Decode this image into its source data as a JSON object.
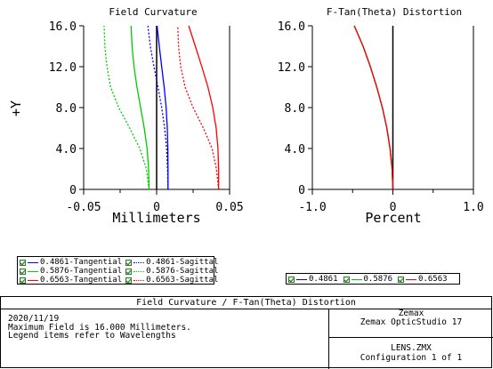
{
  "chart_data": [
    {
      "type": "line",
      "title": "Field Curvature",
      "xlabel": "Millimeters",
      "ylabel": "+Y",
      "xlim": [
        -0.05,
        0.05
      ],
      "ylim": [
        0,
        16
      ],
      "x_ticks": [
        "-0.05",
        "0",
        "0.05"
      ],
      "y_ticks": [
        "0",
        "4.0",
        "8.0",
        "12.0",
        "16.0"
      ],
      "series": [
        {
          "name": "0.4861-Tangential",
          "color": "#0000ff",
          "dash": "solid",
          "x": [
            0.0078,
            0.0078,
            0.0077,
            0.0073,
            0.0065,
            0.0052,
            0.0035,
            0.0018,
            0.0003
          ],
          "y": [
            0,
            2,
            4,
            6,
            8,
            10,
            12,
            14,
            16
          ]
        },
        {
          "name": "0.4861-Sagittal",
          "color": "#0000ff",
          "dash": "dotted",
          "x": [
            0.0078,
            0.0075,
            0.0068,
            0.0055,
            0.0035,
            0.001,
            -0.0018,
            -0.0043,
            -0.006
          ],
          "y": [
            0,
            2,
            4,
            6,
            8,
            10,
            12,
            14,
            16
          ]
        },
        {
          "name": "0.5876-Tangential",
          "color": "#00cc00",
          "dash": "solid",
          "x": [
            -0.0052,
            -0.0055,
            -0.0065,
            -0.0085,
            -0.011,
            -0.0135,
            -0.0155,
            -0.0168,
            -0.0175
          ],
          "y": [
            0,
            2,
            4,
            6,
            8,
            10,
            12,
            14,
            16
          ]
        },
        {
          "name": "0.5876-Sagittal",
          "color": "#00cc00",
          "dash": "dotted",
          "x": [
            -0.0052,
            -0.007,
            -0.0115,
            -0.0185,
            -0.026,
            -0.0315,
            -0.034,
            -0.0355,
            -0.036
          ],
          "y": [
            0,
            2,
            4,
            6,
            8,
            10,
            12,
            14,
            16
          ]
        },
        {
          "name": "0.6563-Tangential",
          "color": "#ff0000",
          "dash": "solid",
          "x": [
            0.0425,
            0.0425,
            0.042,
            0.0408,
            0.0385,
            0.0352,
            0.031,
            0.0265,
            0.022
          ],
          "y": [
            0,
            2,
            4,
            6,
            8,
            10,
            12,
            14,
            16
          ]
        },
        {
          "name": "0.6563-Sagittal",
          "color": "#ff0000",
          "dash": "dotted",
          "x": [
            0.0425,
            0.041,
            0.038,
            0.032,
            0.025,
            0.0195,
            0.0165,
            0.015,
            0.0145
          ],
          "y": [
            0,
            2,
            4,
            6,
            8,
            10,
            12,
            14,
            16
          ]
        }
      ]
    },
    {
      "type": "line",
      "title": "F-Tan(Theta) Distortion",
      "xlabel": "Percent",
      "ylabel": "",
      "xlim": [
        -1.0,
        1.0
      ],
      "ylim": [
        0,
        16
      ],
      "x_ticks": [
        "-1.0",
        "0",
        "1.0"
      ],
      "y_ticks": [
        "0",
        "4.0",
        "8.0",
        "12.0",
        "16.0"
      ],
      "series": [
        {
          "name": "0.4861",
          "color": "#0000ff",
          "x": [
            0,
            -0.01,
            -0.035,
            -0.075,
            -0.13,
            -0.2,
            -0.28,
            -0.37,
            -0.48
          ],
          "y": [
            0,
            2,
            4,
            6,
            8,
            10,
            12,
            14,
            16
          ]
        },
        {
          "name": "0.5876",
          "color": "#00cc00",
          "x": [
            0,
            -0.01,
            -0.035,
            -0.075,
            -0.13,
            -0.2,
            -0.28,
            -0.37,
            -0.48
          ],
          "y": [
            0,
            2,
            4,
            6,
            8,
            10,
            12,
            14,
            16
          ]
        },
        {
          "name": "0.6563",
          "color": "#ff0000",
          "x": [
            0,
            -0.01,
            -0.035,
            -0.075,
            -0.13,
            -0.2,
            -0.28,
            -0.37,
            -0.48
          ],
          "y": [
            0,
            2,
            4,
            6,
            8,
            10,
            12,
            14,
            16
          ]
        }
      ]
    }
  ],
  "info": {
    "title": "Field Curvature / F-Tan(Theta) Distortion",
    "date": "2020/11/19",
    "line1": "Maximum Field is 16.000 Millimeters.",
    "line2": "Legend items refer to Wavelengths",
    "vendor": "Zemax",
    "product": "Zemax OpticStudio 17",
    "file": "LENS.ZMX",
    "config": "Configuration 1 of 1"
  }
}
